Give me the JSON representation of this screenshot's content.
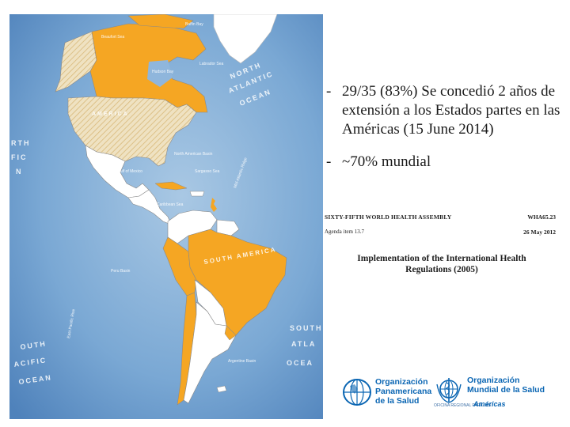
{
  "bullets": [
    {
      "marker": "-",
      "text": "29/35 (83%) Se concedió 2 años de extensión  a los Estados partes en las Américas  (15 June 2014)"
    },
    {
      "marker": "-",
      "text": "~70% mundial"
    }
  ],
  "document": {
    "assembly": "SIXTY-FIFTH WORLD HEALTH ASSEMBLY",
    "code": "WHA65.23",
    "agenda": "Agenda item 13.7",
    "date": "26 May 2012",
    "title": "Implementation of the International Health Regulations (2005)"
  },
  "map": {
    "ocean_labels": {
      "north_atlantic": [
        "NORTH",
        "ATLANTIC",
        "OCEAN"
      ],
      "south_atlantic": [
        "SOUTH",
        "ATLA",
        "OCEA"
      ],
      "north_pacific": [
        "RTH",
        "FIC",
        "N"
      ],
      "south_pacific": [
        "OUTH",
        "ACIFIC",
        "OCEAN"
      ],
      "south_america": "SOUTH AMERICA",
      "america": "AMERICA"
    },
    "feature_labels": [
      "Labrador Sea",
      "Hudson Bay",
      "Beaufort Sea",
      "Baffin Bay",
      "North American Basin",
      "Sargasso Sea",
      "Gulf of Mexico",
      "Caribbean Sea",
      "Mid-Atlantic Ridge",
      "Peru Basin",
      "East Pacific Rise",
      "Argentine Basin"
    ],
    "colors": {
      "ocean": "#6f9fcd",
      "ocean_light": "#9ec0de",
      "extended": "#f5a623",
      "not_extended": "#ffffff",
      "hatched": "#efe2c2",
      "border": "#8a8a8a"
    }
  },
  "logos": {
    "paho": {
      "icon": "paho-globe-icon",
      "lines": [
        "Organización",
        "Panamericana",
        "de la Salud"
      ]
    },
    "who": {
      "icon": "who-emblem-icon",
      "lines": [
        "Organización",
        "Mundial de la Salud"
      ],
      "office": "OFICINA REGIONAL PARA LAS",
      "region": "Américas"
    }
  }
}
